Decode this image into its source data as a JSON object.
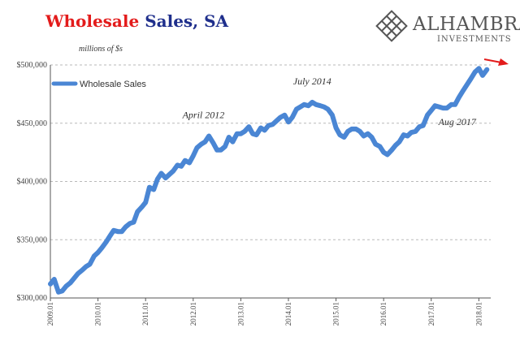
{
  "header": {
    "title_part1": "Wholesale",
    "title_part2": "Sales, SA"
  },
  "logo": {
    "name": "ALHAMBRA",
    "subtitle": "INVESTMENTS",
    "icon": "diamond-lattice-icon"
  },
  "colors": {
    "series": "#4a86d4",
    "title_red": "#e31b1b",
    "title_navy": "#1f2f8c",
    "arrow": "#e31b1b",
    "grid": "#b9b9b9"
  },
  "chart_data": {
    "type": "line",
    "units_label": "millions of $s",
    "ylim": [
      300000,
      500000
    ],
    "xlim": [
      2009.0,
      2018.25
    ],
    "yticks": [
      {
        "value": 300000,
        "label": "$300,000"
      },
      {
        "value": 350000,
        "label": "$350,000"
      },
      {
        "value": 400000,
        "label": "$400,000"
      },
      {
        "value": 450000,
        "label": "$450,000"
      },
      {
        "value": 500000,
        "label": "$500,000"
      }
    ],
    "xticks": [
      {
        "value": 2009.0,
        "label": "2009.01"
      },
      {
        "value": 2010.0,
        "label": "2010.01"
      },
      {
        "value": 2011.0,
        "label": "2011.01"
      },
      {
        "value": 2012.0,
        "label": "2012.01"
      },
      {
        "value": 2013.0,
        "label": "2013.01"
      },
      {
        "value": 2014.0,
        "label": "2014.01"
      },
      {
        "value": 2015.0,
        "label": "2015.01"
      },
      {
        "value": 2016.0,
        "label": "2016.01"
      },
      {
        "value": 2017.0,
        "label": "2017.01"
      },
      {
        "value": 2018.0,
        "label": "2018.01"
      }
    ],
    "grid": "horizontal dashed",
    "legend": {
      "position": "top-left",
      "entries": [
        "Wholesale Sales"
      ]
    },
    "annotations": [
      {
        "text": "April 2012",
        "x": 2012.25,
        "y": 439000
      },
      {
        "text": "July 2014",
        "x": 2014.5,
        "y": 468000
      },
      {
        "text": "Aug 2017",
        "x": 2017.58,
        "y": 465000
      }
    ],
    "series": [
      {
        "name": "Wholesale Sales",
        "points": [
          [
            2009.0,
            312000
          ],
          [
            2009.08,
            316000
          ],
          [
            2009.17,
            305000
          ],
          [
            2009.25,
            306000
          ],
          [
            2009.33,
            310000
          ],
          [
            2009.42,
            313000
          ],
          [
            2009.5,
            317000
          ],
          [
            2009.58,
            321000
          ],
          [
            2009.67,
            324000
          ],
          [
            2009.75,
            327000
          ],
          [
            2009.83,
            329000
          ],
          [
            2009.92,
            336000
          ],
          [
            2010.0,
            339000
          ],
          [
            2010.08,
            343000
          ],
          [
            2010.17,
            348000
          ],
          [
            2010.25,
            353000
          ],
          [
            2010.33,
            358000
          ],
          [
            2010.42,
            357000
          ],
          [
            2010.5,
            357000
          ],
          [
            2010.58,
            361000
          ],
          [
            2010.67,
            364000
          ],
          [
            2010.75,
            365000
          ],
          [
            2010.83,
            374000
          ],
          [
            2010.92,
            378000
          ],
          [
            2011.0,
            382000
          ],
          [
            2011.08,
            395000
          ],
          [
            2011.17,
            393000
          ],
          [
            2011.25,
            402000
          ],
          [
            2011.33,
            407000
          ],
          [
            2011.42,
            403000
          ],
          [
            2011.5,
            406000
          ],
          [
            2011.58,
            409000
          ],
          [
            2011.67,
            414000
          ],
          [
            2011.75,
            413000
          ],
          [
            2011.83,
            418000
          ],
          [
            2011.92,
            416000
          ],
          [
            2012.0,
            422000
          ],
          [
            2012.08,
            429000
          ],
          [
            2012.17,
            432000
          ],
          [
            2012.25,
            434000
          ],
          [
            2012.33,
            439000
          ],
          [
            2012.42,
            433000
          ],
          [
            2012.5,
            427000
          ],
          [
            2012.58,
            427000
          ],
          [
            2012.67,
            430000
          ],
          [
            2012.75,
            438000
          ],
          [
            2012.83,
            434000
          ],
          [
            2012.92,
            441000
          ],
          [
            2013.0,
            441000
          ],
          [
            2013.08,
            443000
          ],
          [
            2013.17,
            447000
          ],
          [
            2013.25,
            441000
          ],
          [
            2013.33,
            440000
          ],
          [
            2013.42,
            446000
          ],
          [
            2013.5,
            444000
          ],
          [
            2013.58,
            448000
          ],
          [
            2013.67,
            449000
          ],
          [
            2013.75,
            452000
          ],
          [
            2013.83,
            455000
          ],
          [
            2013.92,
            457000
          ],
          [
            2014.0,
            451000
          ],
          [
            2014.08,
            455000
          ],
          [
            2014.17,
            462000
          ],
          [
            2014.25,
            464000
          ],
          [
            2014.33,
            466000
          ],
          [
            2014.42,
            465000
          ],
          [
            2014.5,
            468000
          ],
          [
            2014.58,
            466000
          ],
          [
            2014.67,
            465000
          ],
          [
            2014.75,
            464000
          ],
          [
            2014.83,
            462000
          ],
          [
            2014.92,
            457000
          ],
          [
            2015.0,
            446000
          ],
          [
            2015.08,
            440000
          ],
          [
            2015.17,
            438000
          ],
          [
            2015.25,
            443000
          ],
          [
            2015.33,
            445000
          ],
          [
            2015.42,
            445000
          ],
          [
            2015.5,
            443000
          ],
          [
            2015.58,
            439000
          ],
          [
            2015.67,
            441000
          ],
          [
            2015.75,
            438000
          ],
          [
            2015.83,
            432000
          ],
          [
            2015.92,
            430000
          ],
          [
            2016.0,
            425000
          ],
          [
            2016.08,
            423000
          ],
          [
            2016.17,
            427000
          ],
          [
            2016.25,
            431000
          ],
          [
            2016.33,
            434000
          ],
          [
            2016.42,
            440000
          ],
          [
            2016.5,
            439000
          ],
          [
            2016.58,
            442000
          ],
          [
            2016.67,
            443000
          ],
          [
            2016.75,
            447000
          ],
          [
            2016.83,
            448000
          ],
          [
            2016.92,
            457000
          ],
          [
            2017.0,
            461000
          ],
          [
            2017.08,
            465000
          ],
          [
            2017.17,
            464000
          ],
          [
            2017.25,
            463000
          ],
          [
            2017.33,
            463000
          ],
          [
            2017.42,
            466000
          ],
          [
            2017.5,
            466000
          ],
          [
            2017.58,
            472000
          ],
          [
            2017.67,
            478000
          ],
          [
            2017.75,
            483000
          ],
          [
            2017.83,
            488000
          ],
          [
            2017.92,
            494000
          ],
          [
            2018.0,
            497000
          ],
          [
            2018.08,
            491000
          ],
          [
            2018.17,
            496000
          ]
        ]
      }
    ]
  }
}
